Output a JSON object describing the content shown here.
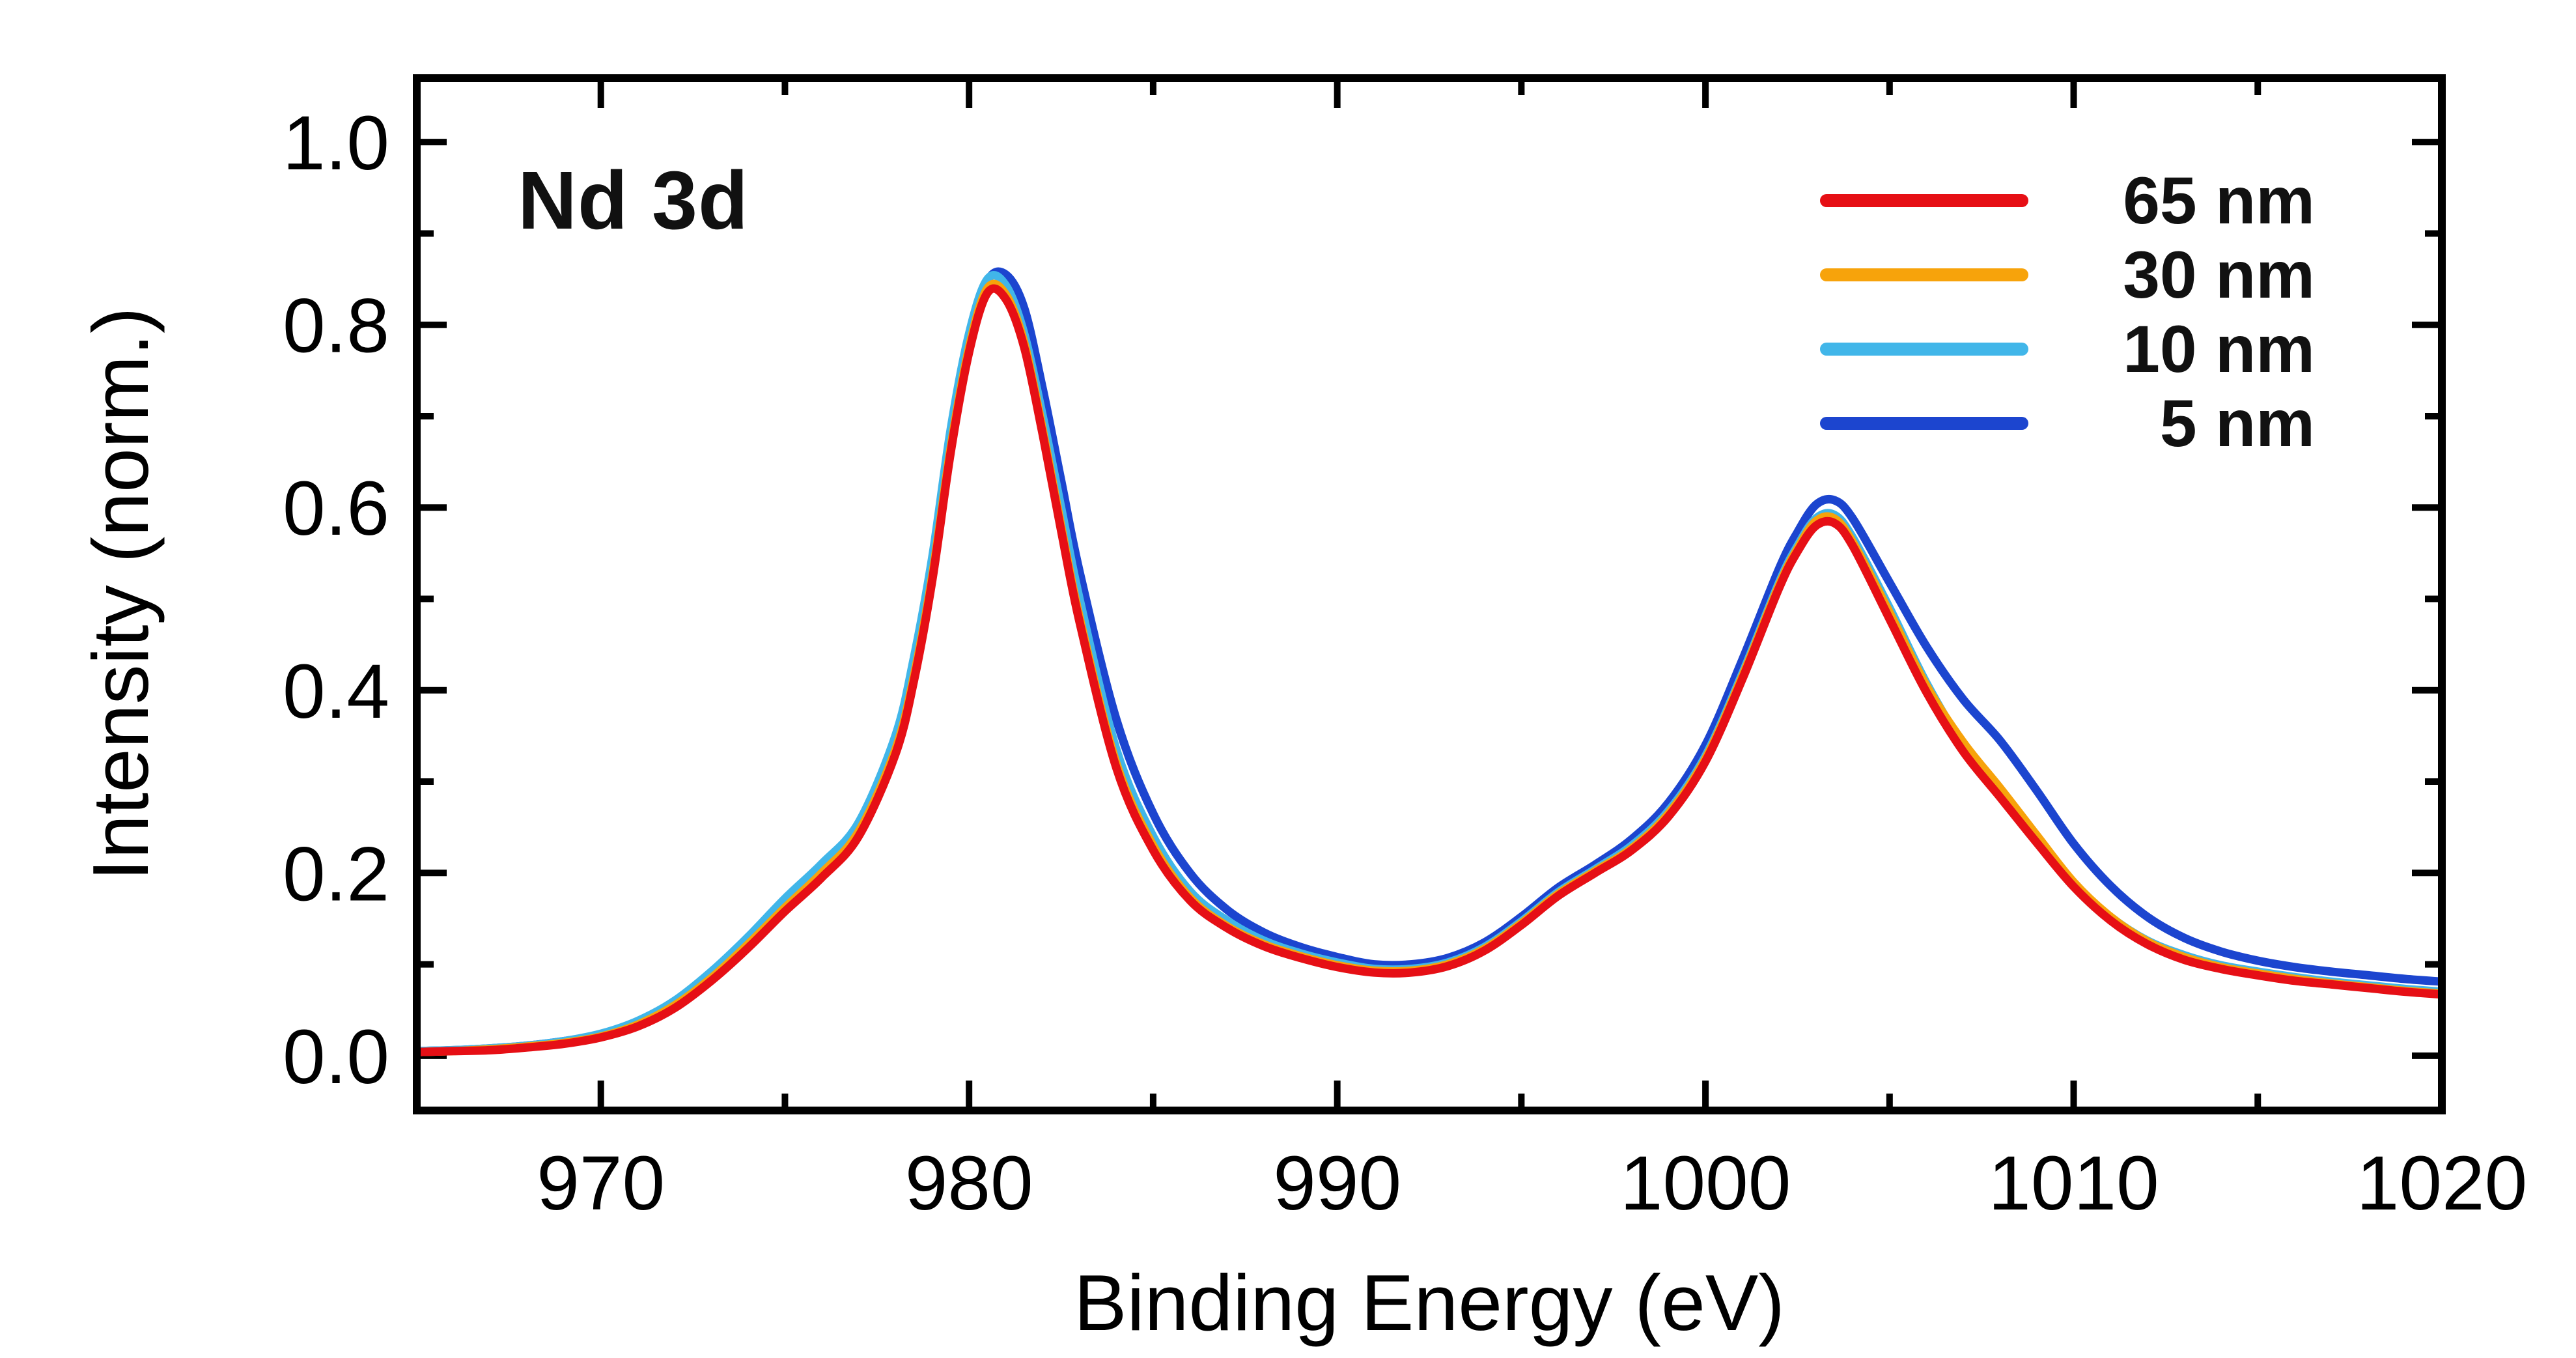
{
  "figure": {
    "background": "#ffffff",
    "frame_color": "#000000"
  },
  "chart_data": {
    "type": "line",
    "title": "",
    "annotation": "Nd 3d",
    "xlabel": "Binding Energy (eV)",
    "ylabel": "Intensity (norm.)",
    "xlim": [
      965,
      1020
    ],
    "ylim": [
      -0.06,
      1.07
    ],
    "xticks": [
      970,
      980,
      990,
      1000,
      1010,
      1020
    ],
    "xtick_labels": [
      "970",
      "980",
      "990",
      "1000",
      "1010",
      "1020"
    ],
    "yticks": [
      0.0,
      0.2,
      0.4,
      0.6,
      0.8,
      1.0
    ],
    "ytick_labels": [
      "0.0",
      "0.2",
      "0.4",
      "0.6",
      "0.8",
      "1.0"
    ],
    "x_minor_ticks": [
      965,
      975,
      985,
      995,
      1005,
      1015
    ],
    "y_minor_ticks": [
      0.1,
      0.3,
      0.5,
      0.7,
      0.9
    ],
    "grid": false,
    "legend_position": "top-right",
    "x": [
      965,
      966,
      967,
      968,
      969,
      970,
      971,
      972,
      973,
      974,
      975,
      976,
      977,
      978,
      978.5,
      979,
      979.5,
      980,
      980.5,
      981,
      981.5,
      982,
      982.5,
      983,
      984,
      985,
      986,
      987,
      988,
      989,
      990,
      991,
      992,
      993,
      994,
      995,
      996,
      997,
      998,
      999,
      1000,
      1001,
      1002,
      1002.5,
      1003,
      1003.5,
      1004,
      1005,
      1006,
      1007,
      1008,
      1009,
      1010,
      1011,
      1012,
      1013,
      1014,
      1015,
      1016,
      1017,
      1018,
      1019,
      1020
    ],
    "series": [
      {
        "name": "65 nm",
        "color": "#e60f15",
        "values": [
          0.004,
          0.005,
          0.006,
          0.009,
          0.013,
          0.02,
          0.032,
          0.052,
          0.082,
          0.118,
          0.158,
          0.195,
          0.24,
          0.33,
          0.41,
          0.52,
          0.66,
          0.77,
          0.835,
          0.828,
          0.775,
          0.68,
          0.575,
          0.475,
          0.315,
          0.225,
          0.17,
          0.14,
          0.12,
          0.107,
          0.097,
          0.091,
          0.091,
          0.098,
          0.115,
          0.143,
          0.175,
          0.2,
          0.225,
          0.262,
          0.322,
          0.412,
          0.512,
          0.552,
          0.58,
          0.583,
          0.558,
          0.478,
          0.398,
          0.333,
          0.283,
          0.233,
          0.185,
          0.148,
          0.122,
          0.105,
          0.095,
          0.088,
          0.082,
          0.078,
          0.074,
          0.07,
          0.067
        ]
      },
      {
        "name": "30 nm",
        "color": "#f7a30b",
        "values": [
          0.004,
          0.005,
          0.007,
          0.01,
          0.014,
          0.021,
          0.034,
          0.055,
          0.085,
          0.122,
          0.162,
          0.2,
          0.245,
          0.335,
          0.415,
          0.525,
          0.665,
          0.775,
          0.84,
          0.833,
          0.78,
          0.685,
          0.58,
          0.48,
          0.32,
          0.23,
          0.173,
          0.142,
          0.122,
          0.109,
          0.099,
          0.093,
          0.093,
          0.1,
          0.117,
          0.145,
          0.177,
          0.202,
          0.227,
          0.265,
          0.325,
          0.415,
          0.515,
          0.555,
          0.585,
          0.588,
          0.562,
          0.485,
          0.405,
          0.343,
          0.293,
          0.241,
          0.19,
          0.152,
          0.125,
          0.108,
          0.097,
          0.09,
          0.084,
          0.079,
          0.075,
          0.071,
          0.068
        ]
      },
      {
        "name": "10 nm",
        "color": "#41b6e9",
        "values": [
          0.005,
          0.006,
          0.008,
          0.011,
          0.016,
          0.024,
          0.038,
          0.06,
          0.092,
          0.13,
          0.172,
          0.21,
          0.255,
          0.35,
          0.435,
          0.545,
          0.685,
          0.79,
          0.85,
          0.843,
          0.79,
          0.7,
          0.6,
          0.5,
          0.335,
          0.24,
          0.18,
          0.148,
          0.126,
          0.112,
          0.102,
          0.095,
          0.095,
          0.102,
          0.119,
          0.147,
          0.179,
          0.204,
          0.23,
          0.268,
          0.328,
          0.418,
          0.518,
          0.558,
          0.588,
          0.592,
          0.567,
          0.49,
          0.408,
          0.34,
          0.288,
          0.238,
          0.189,
          0.152,
          0.126,
          0.11,
          0.099,
          0.092,
          0.086,
          0.081,
          0.077,
          0.073,
          0.07
        ]
      },
      {
        "name": "5 nm",
        "color": "#1c45cf",
        "values": [
          0.005,
          0.006,
          0.008,
          0.011,
          0.016,
          0.023,
          0.037,
          0.058,
          0.089,
          0.126,
          0.168,
          0.206,
          0.248,
          0.338,
          0.42,
          0.53,
          0.67,
          0.78,
          0.848,
          0.855,
          0.818,
          0.73,
          0.63,
          0.53,
          0.368,
          0.265,
          0.2,
          0.16,
          0.135,
          0.119,
          0.108,
          0.1,
          0.1,
          0.107,
          0.124,
          0.152,
          0.184,
          0.209,
          0.237,
          0.277,
          0.34,
          0.433,
          0.533,
          0.573,
          0.603,
          0.608,
          0.588,
          0.518,
          0.448,
          0.39,
          0.345,
          0.29,
          0.232,
          0.186,
          0.152,
          0.129,
          0.114,
          0.104,
          0.097,
          0.092,
          0.088,
          0.084,
          0.081
        ]
      }
    ]
  }
}
